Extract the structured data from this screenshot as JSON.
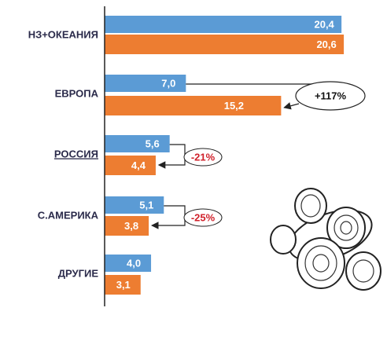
{
  "chart_data": {
    "type": "hbar",
    "categories": [
      "НЗ+ОКЕАНИЯ",
      "ЕВРОПА",
      "РОССИЯ",
      "С.АМЕРИКА",
      "ДРУГИЕ"
    ],
    "series": [
      {
        "color": "#5b9bd5",
        "values": [
          20.4,
          7.0,
          5.6,
          5.1,
          4.0
        ],
        "value_labels": [
          "20,4",
          "7,0",
          "5,6",
          "5,1",
          "4,0"
        ]
      },
      {
        "color": "#ed7d31",
        "values": [
          20.6,
          15.2,
          4.4,
          3.8,
          3.1
        ],
        "value_labels": [
          "20,6",
          "15,2",
          "4,4",
          "3,8",
          "3,1"
        ]
      }
    ],
    "xlim": [
      0,
      21
    ],
    "annotations": [
      "+117%",
      "-21%",
      "-25%"
    ]
  }
}
